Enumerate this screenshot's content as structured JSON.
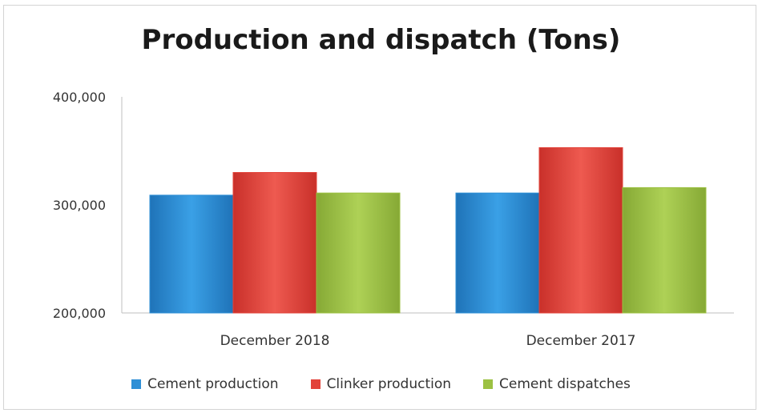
{
  "chart_data": {
    "type": "bar",
    "title": "Production and dispatch (Tons)",
    "categories": [
      "December 2018",
      "December 2017"
    ],
    "series": [
      {
        "name": "Cement production",
        "values": [
          309000,
          311000
        ],
        "color": "#2e8fd6"
      },
      {
        "name": "Clinker production",
        "values": [
          330000,
          353000
        ],
        "color": "#e2433a"
      },
      {
        "name": "Cement dispatches",
        "values": [
          311000,
          316000
        ],
        "color": "#9cc142"
      }
    ],
    "ylim": [
      200000,
      400000
    ],
    "yticks": [
      "200,000",
      "300,000",
      "400,000"
    ],
    "ytick_values": [
      200000,
      300000,
      400000
    ],
    "legend_position": "bottom",
    "grid": false
  }
}
